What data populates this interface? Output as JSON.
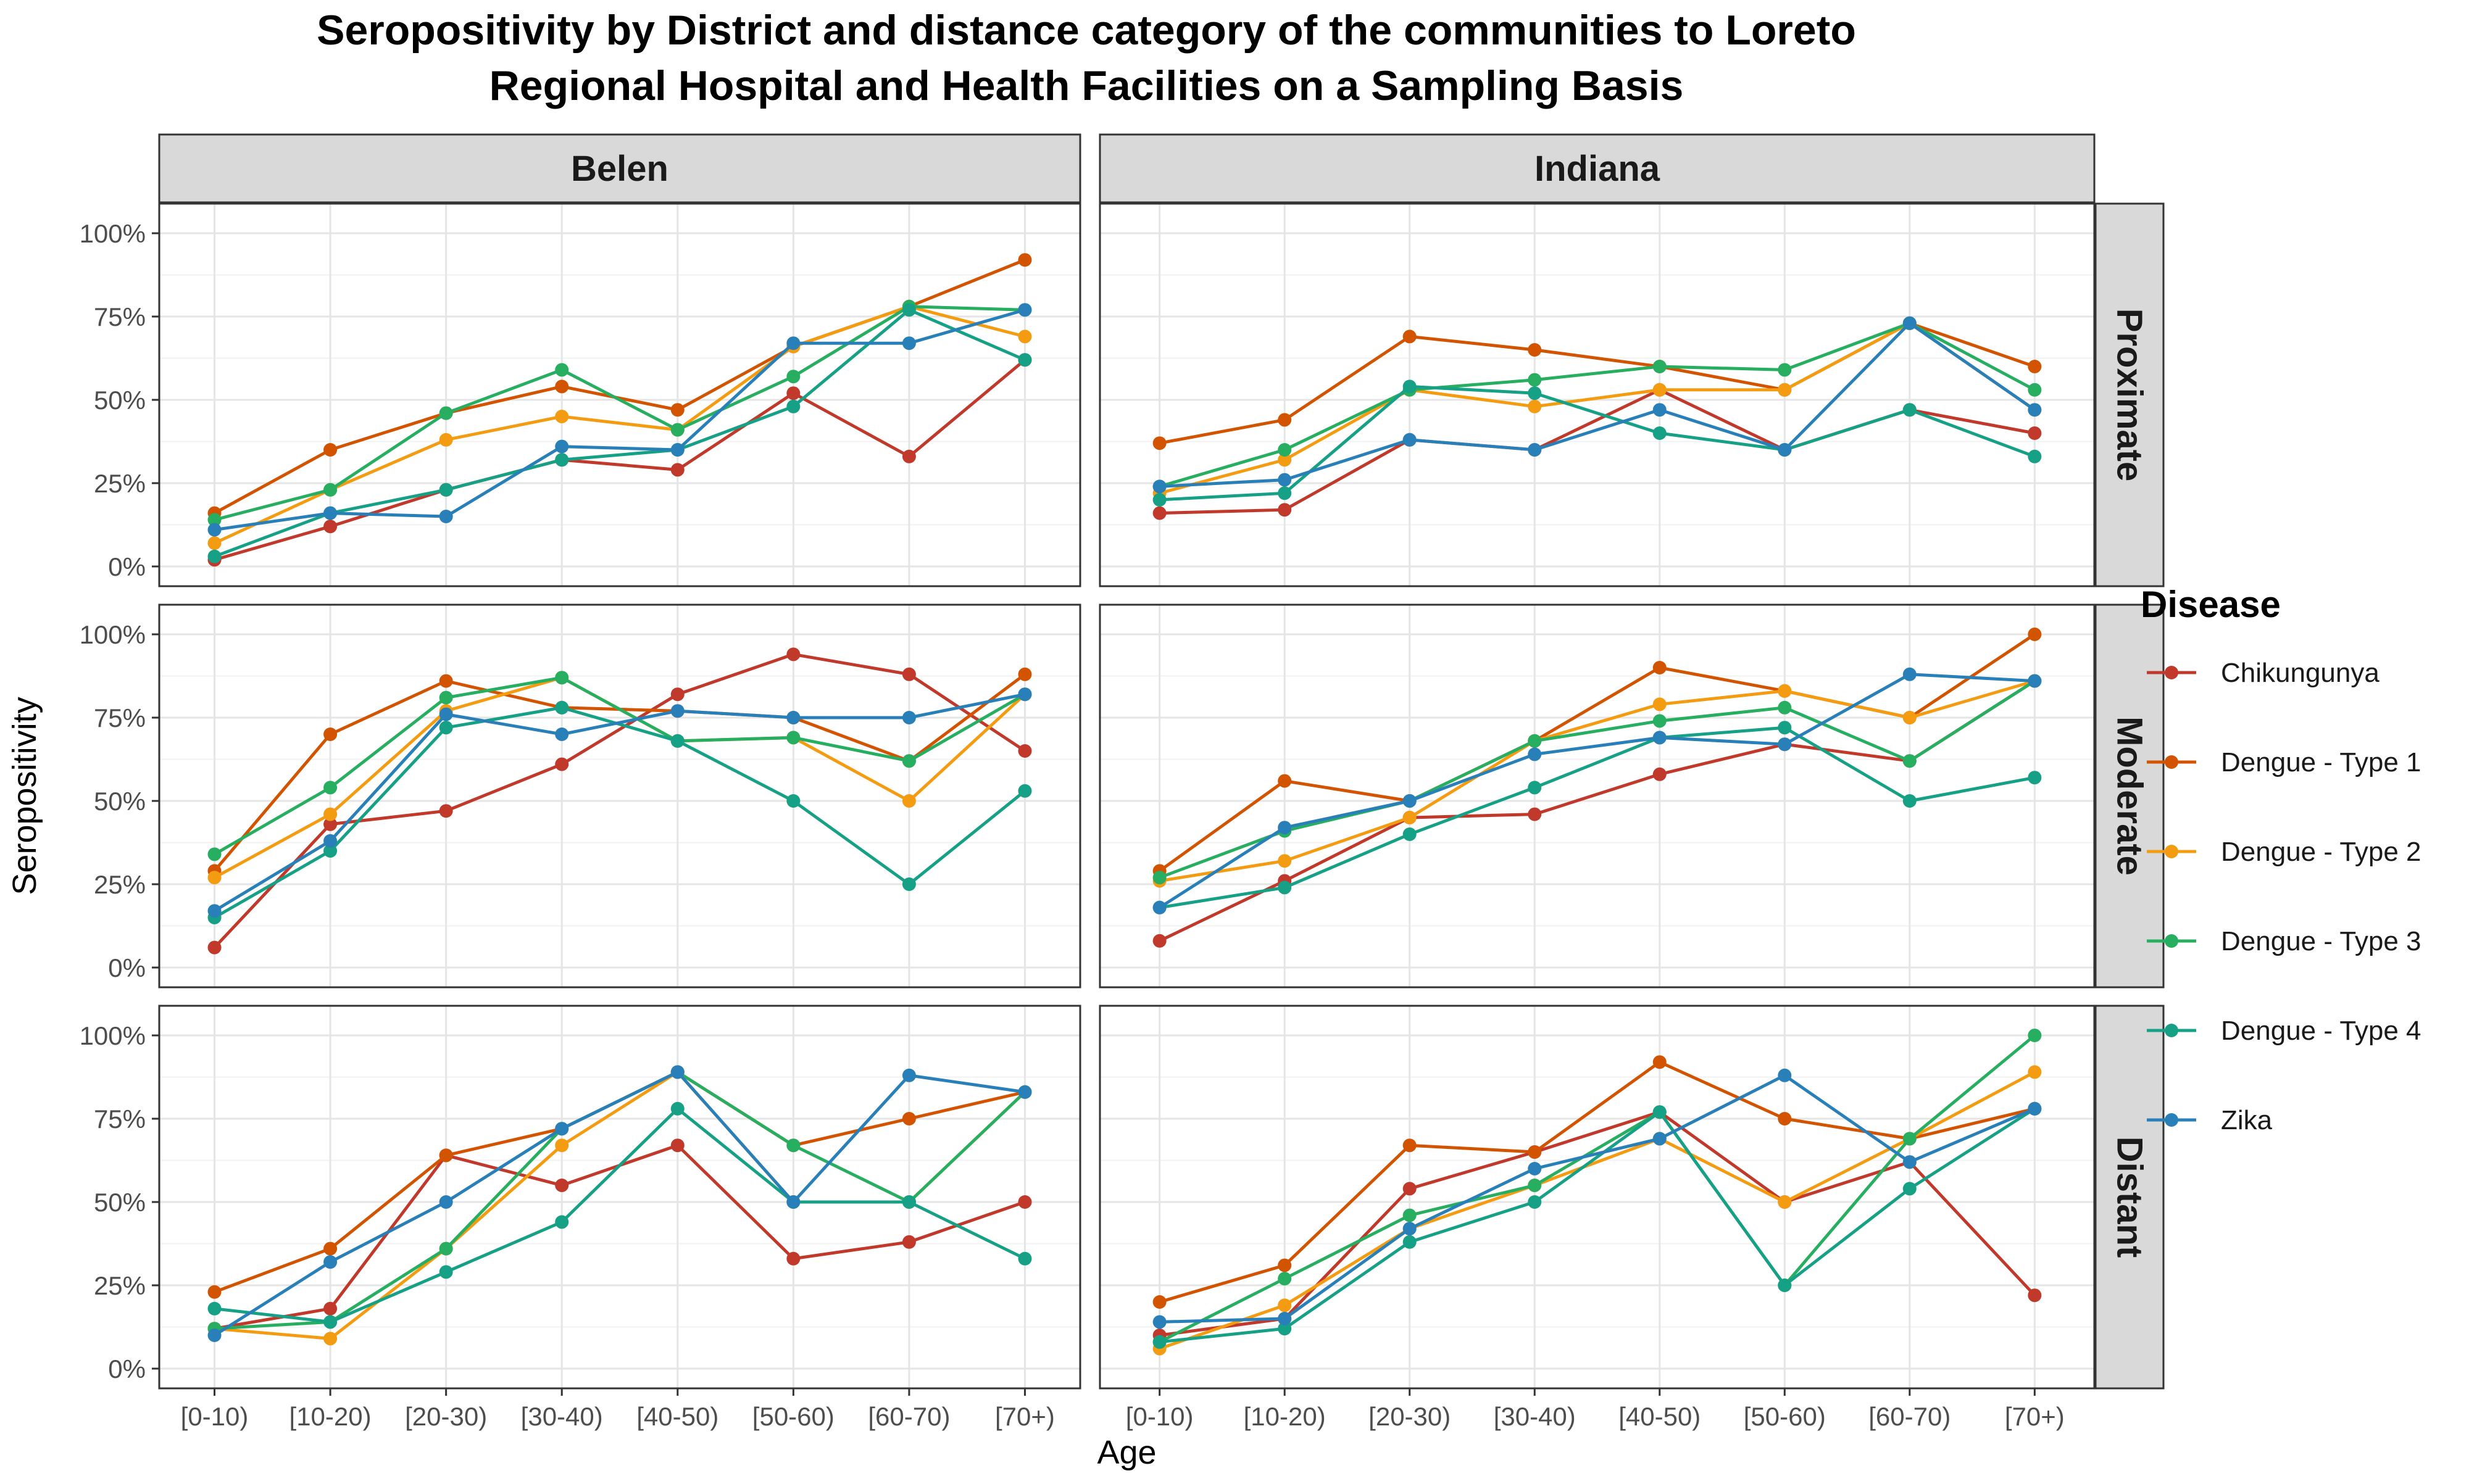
{
  "title_line1": "Seropositivity by District and distance category of the communities to Loreto",
  "title_line2": "Regional Hospital and Health Facilities on a Sampling Basis",
  "chart_data": {
    "type": "line",
    "title": "Seropositivity by District and distance category of the communities to Loreto Regional Hospital and Health Facilities on a Sampling Basis",
    "xlabel": "Age",
    "ylabel": "Seropositivity",
    "x": [
      "[0-10)",
      "[10-20)",
      "[20-30)",
      "[30-40)",
      "[40-50)",
      "[50-60)",
      "[60-70)",
      "[70+)"
    ],
    "ylim": [
      0,
      100
    ],
    "yticks": [
      "0%",
      "25%",
      "50%",
      "75%",
      "100%"
    ],
    "yticks_values": [
      0,
      25,
      50,
      75,
      100
    ],
    "grid": true,
    "legend_title": "Disease",
    "legend_position": "right",
    "facet_columns": [
      "Belen",
      "Indiana"
    ],
    "facet_rows": [
      "Proximate",
      "Moderate",
      "Distant"
    ],
    "series_meta": [
      {
        "name": "Chikungunya",
        "color": "#C0392B"
      },
      {
        "name": "Dengue - Type 1",
        "color": "#D35400"
      },
      {
        "name": "Dengue - Type 2",
        "color": "#F39C12"
      },
      {
        "name": "Dengue - Type 3",
        "color": "#27AE60"
      },
      {
        "name": "Dengue - Type 4",
        "color": "#16A085"
      },
      {
        "name": "Zika",
        "color": "#2980B9"
      }
    ],
    "panels": [
      {
        "column": "Belen",
        "row": "Proximate",
        "series": [
          {
            "name": "Chikungunya",
            "values": [
              2,
              12,
              23,
              32,
              29,
              52,
              33,
              62
            ]
          },
          {
            "name": "Dengue - Type 1",
            "values": [
              16,
              35,
              46,
              54,
              47,
              66,
              78,
              92
            ]
          },
          {
            "name": "Dengue - Type 2",
            "values": [
              7,
              23,
              38,
              45,
              41,
              66,
              78,
              69
            ]
          },
          {
            "name": "Dengue - Type 3",
            "values": [
              14,
              23,
              46,
              59,
              41,
              57,
              78,
              77
            ]
          },
          {
            "name": "Dengue - Type 4",
            "values": [
              3,
              16,
              23,
              32,
              35,
              48,
              77,
              62
            ]
          },
          {
            "name": "Zika",
            "values": [
              11,
              16,
              15,
              36,
              35,
              67,
              67,
              77
            ]
          }
        ]
      },
      {
        "column": "Indiana",
        "row": "Proximate",
        "series": [
          {
            "name": "Chikungunya",
            "values": [
              16,
              17,
              38,
              35,
              53,
              35,
              47,
              40
            ]
          },
          {
            "name": "Dengue - Type 1",
            "values": [
              37,
              44,
              69,
              65,
              60,
              53,
              73,
              60
            ]
          },
          {
            "name": "Dengue - Type 2",
            "values": [
              22,
              32,
              53,
              48,
              53,
              53,
              73,
              47
            ]
          },
          {
            "name": "Dengue - Type 3",
            "values": [
              24,
              35,
              53,
              56,
              60,
              59,
              73,
              53
            ]
          },
          {
            "name": "Dengue - Type 4",
            "values": [
              20,
              22,
              54,
              52,
              40,
              35,
              47,
              33
            ]
          },
          {
            "name": "Zika",
            "values": [
              24,
              26,
              38,
              35,
              47,
              35,
              73,
              47
            ]
          }
        ]
      },
      {
        "column": "Belen",
        "row": "Moderate",
        "series": [
          {
            "name": "Chikungunya",
            "values": [
              6,
              43,
              47,
              61,
              82,
              94,
              88,
              65
            ]
          },
          {
            "name": "Dengue - Type 1",
            "values": [
              29,
              70,
              86,
              78,
              77,
              75,
              62,
              88
            ]
          },
          {
            "name": "Dengue - Type 2",
            "values": [
              27,
              46,
              77,
              87,
              68,
              69,
              50,
              82
            ]
          },
          {
            "name": "Dengue - Type 3",
            "values": [
              34,
              54,
              81,
              87,
              68,
              69,
              62,
              82
            ]
          },
          {
            "name": "Dengue - Type 4",
            "values": [
              15,
              35,
              72,
              78,
              68,
              50,
              25,
              53
            ]
          },
          {
            "name": "Zika",
            "values": [
              17,
              38,
              76,
              70,
              77,
              75,
              75,
              82
            ]
          }
        ]
      },
      {
        "column": "Indiana",
        "row": "Moderate",
        "series": [
          {
            "name": "Chikungunya",
            "values": [
              8,
              26,
              45,
              46,
              58,
              67,
              62,
              86
            ]
          },
          {
            "name": "Dengue - Type 1",
            "values": [
              29,
              56,
              50,
              68,
              90,
              83,
              75,
              100
            ]
          },
          {
            "name": "Dengue - Type 2",
            "values": [
              26,
              32,
              45,
              68,
              79,
              83,
              75,
              86
            ]
          },
          {
            "name": "Dengue - Type 3",
            "values": [
              27,
              41,
              50,
              68,
              74,
              78,
              62,
              86
            ]
          },
          {
            "name": "Dengue - Type 4",
            "values": [
              18,
              24,
              40,
              54,
              69,
              72,
              50,
              57
            ]
          },
          {
            "name": "Zika",
            "values": [
              18,
              42,
              50,
              64,
              69,
              67,
              88,
              86
            ]
          }
        ]
      },
      {
        "column": "Belen",
        "row": "Distant",
        "series": [
          {
            "name": "Chikungunya",
            "values": [
              12,
              18,
              64,
              55,
              67,
              33,
              38,
              50
            ]
          },
          {
            "name": "Dengue - Type 1",
            "values": [
              23,
              36,
              64,
              72,
              89,
              67,
              75,
              83
            ]
          },
          {
            "name": "Dengue - Type 2",
            "values": [
              12,
              9,
              36,
              67,
              89,
              50,
              50,
              83
            ]
          },
          {
            "name": "Dengue - Type 3",
            "values": [
              12,
              14,
              36,
              72,
              89,
              67,
              50,
              83
            ]
          },
          {
            "name": "Dengue - Type 4",
            "values": [
              18,
              14,
              29,
              44,
              78,
              50,
              50,
              33
            ]
          },
          {
            "name": "Zika",
            "values": [
              10,
              32,
              50,
              72,
              89,
              50,
              88,
              83
            ]
          }
        ]
      },
      {
        "column": "Indiana",
        "row": "Distant",
        "series": [
          {
            "name": "Chikungunya",
            "values": [
              10,
              15,
              54,
              65,
              77,
              50,
              62,
              22
            ]
          },
          {
            "name": "Dengue - Type 1",
            "values": [
              20,
              31,
              67,
              65,
              92,
              75,
              69,
              78
            ]
          },
          {
            "name": "Dengue - Type 2",
            "values": [
              6,
              19,
              42,
              55,
              69,
              50,
              69,
              89
            ]
          },
          {
            "name": "Dengue - Type 3",
            "values": [
              8,
              27,
              46,
              55,
              77,
              25,
              69,
              100
            ]
          },
          {
            "name": "Dengue - Type 4",
            "values": [
              8,
              12,
              38,
              50,
              77,
              25,
              54,
              78
            ]
          },
          {
            "name": "Zika",
            "values": [
              14,
              15,
              42,
              60,
              69,
              88,
              62,
              78
            ]
          }
        ]
      }
    ]
  }
}
